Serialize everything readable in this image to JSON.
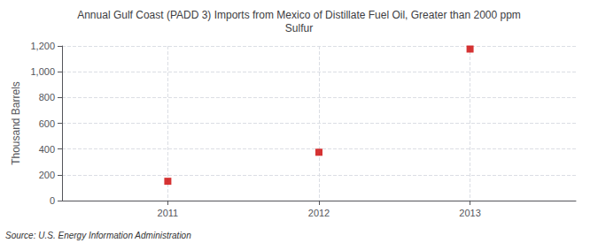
{
  "chart_data": {
    "type": "scatter",
    "title": "Annual Gulf Coast (PADD 3) Imports from Mexico of Distillate Fuel Oil, Greater than 2000 ppm\nSulfur",
    "y_label": "Thousand Barrels",
    "annotation": "Source: U.S. Energy Information Administration",
    "x": [
      2011,
      2012,
      2013
    ],
    "values": [
      150,
      375,
      1176
    ],
    "color": "#cc0000",
    "marker": "square",
    "xlim": [
      2010.3,
      2013.7
    ],
    "xticks": [
      2011,
      2012,
      2013
    ],
    "ylim": [
      0,
      1200
    ],
    "yticks": [
      0,
      200,
      400,
      600,
      800,
      {
        "value": 1000,
        "label": "1,000"
      },
      {
        "value": 1200,
        "label": "1,200"
      }
    ],
    "grid": true
  }
}
